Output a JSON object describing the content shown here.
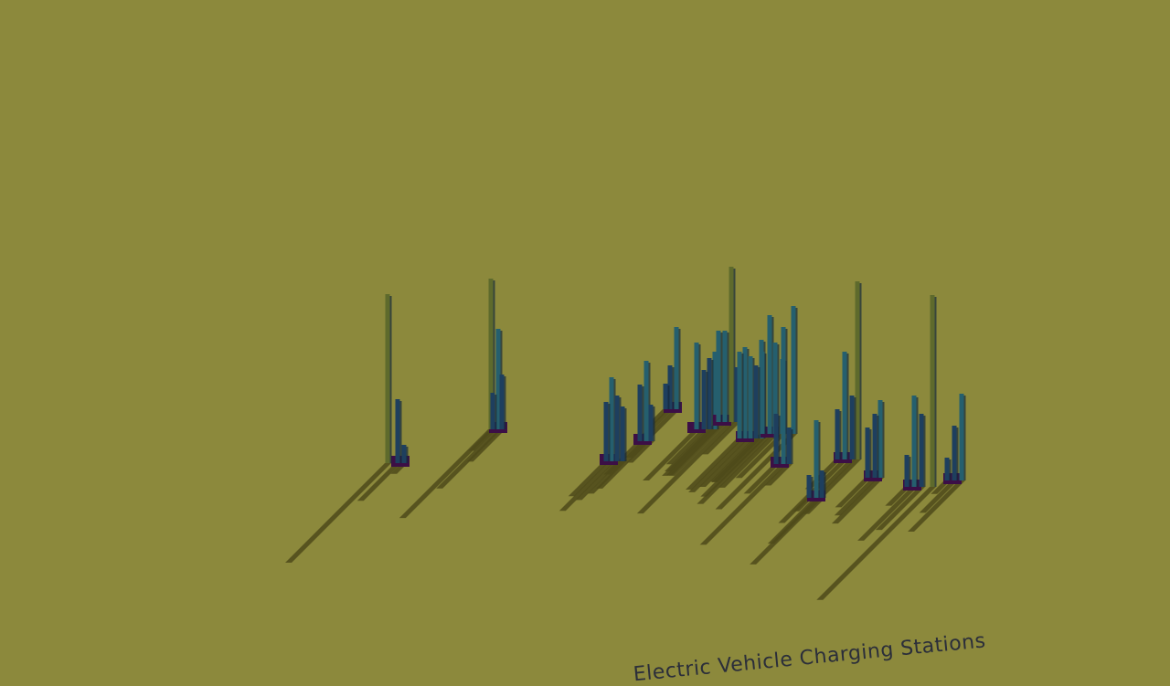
{
  "scene": {
    "title": "Electric Vehicle Charging Stations",
    "ground_color": "#8c893c",
    "shadow_color": "#4d4a1a",
    "base_color": "#3c0f46",
    "bar_color_low": "#1e3f5e",
    "bar_color_mid": "#255f6e",
    "bar_color_tall": "#5e6a2c",
    "cluster_count": 17
  }
}
